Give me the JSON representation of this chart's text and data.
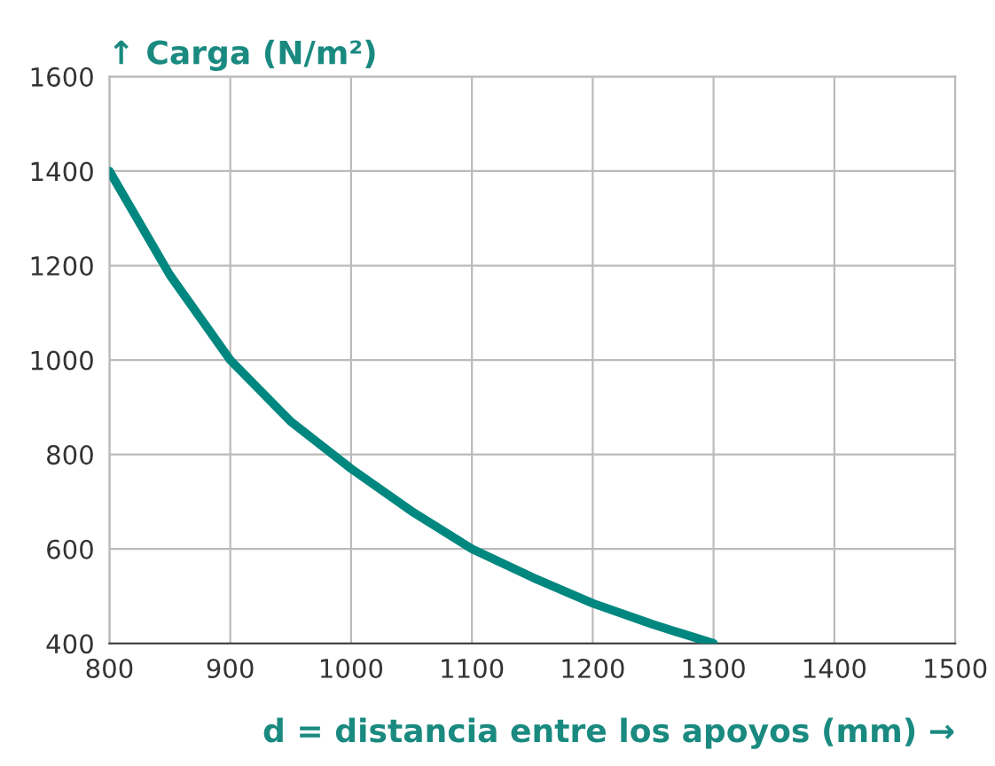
{
  "chart_data": {
    "type": "line",
    "ylabel": "↑ Carga (N/m²)",
    "xlabel": "d = distancia entre los apoyos (mm) →",
    "x": [
      800,
      850,
      900,
      950,
      1000,
      1050,
      1100,
      1150,
      1200,
      1250,
      1300
    ],
    "series": [
      {
        "color": "#00877f",
        "values": [
          1400,
          1180,
          1000,
          870,
          770,
          680,
          600,
          540,
          485,
          440,
          400
        ]
      }
    ],
    "xlim": [
      800,
      1500
    ],
    "xticks": [
      800,
      900,
      1000,
      1100,
      1200,
      1300,
      1400,
      1500
    ],
    "ylim": [
      400,
      1600
    ],
    "yticks": [
      400,
      600,
      800,
      1000,
      1200,
      1400,
      1600
    ],
    "grid": true,
    "marker": "none",
    "line_style": "solid"
  }
}
